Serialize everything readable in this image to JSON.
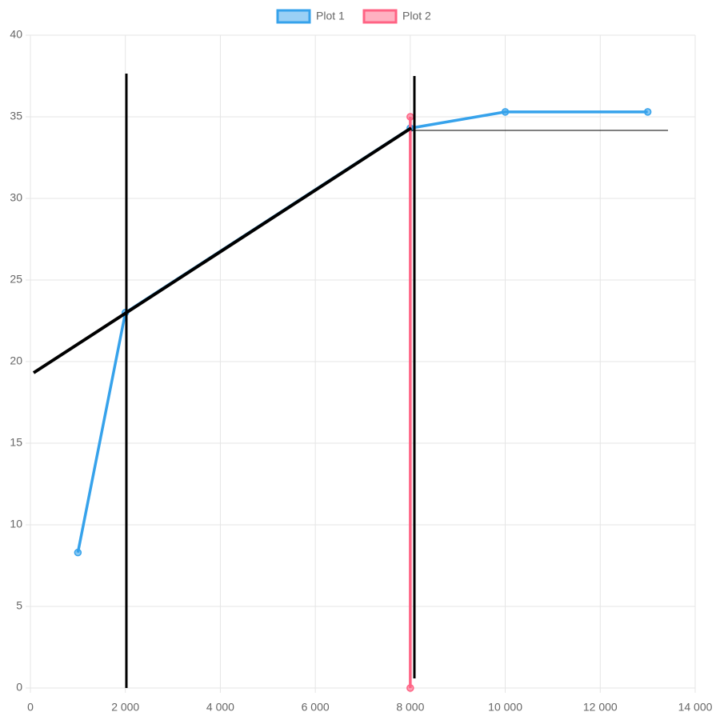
{
  "chart_data": {
    "type": "line",
    "series": [
      {
        "name": "Plot 1",
        "color": "#36a2eb",
        "x": [
          1000,
          2000,
          8000,
          10000,
          13000
        ],
        "values": [
          8.3,
          23,
          34.3,
          35.3,
          35.3
        ]
      },
      {
        "name": "Plot 2",
        "color": "#ff6384",
        "x": [
          8000,
          8000
        ],
        "values": [
          35,
          0
        ]
      }
    ],
    "xlim": [
      0,
      14000
    ],
    "xticks": [
      0,
      {
        "value": 2000,
        "label": "2 000"
      },
      {
        "value": 4000,
        "label": "4 000"
      },
      {
        "value": 6000,
        "label": "6 000"
      },
      {
        "value": 8000,
        "label": "8 000"
      },
      {
        "value": 10000,
        "label": "10 000"
      },
      {
        "value": 12000,
        "label": "12 000"
      },
      {
        "value": 14000,
        "label": "14 000"
      }
    ],
    "ylim": [
      0,
      40
    ],
    "yticks": [
      0,
      5,
      10,
      15,
      20,
      25,
      30,
      35,
      40
    ],
    "grid": true,
    "legend": "top"
  }
}
